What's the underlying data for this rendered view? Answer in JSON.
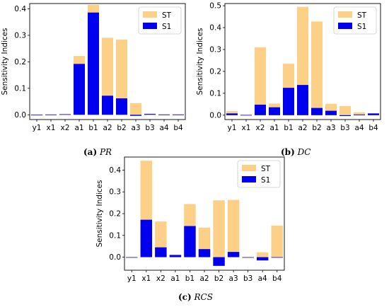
{
  "colors": {
    "st": "#fdd088",
    "s1": "#0000ee",
    "axis": "#000000"
  },
  "chart_data": [
    {
      "type": "bar",
      "stacked_overlay": true,
      "ylabel": "Sensitivity Indices",
      "xlabel": "",
      "categories": [
        "y1",
        "x1",
        "x2",
        "a1",
        "b1",
        "a2",
        "b2",
        "a3",
        "b3",
        "a4",
        "b4"
      ],
      "yticks": [
        "0.0",
        "0.1",
        "0.2",
        "0.3",
        "0.4"
      ],
      "ylim": [
        -0.018,
        0.42
      ],
      "legend_position": "top-right",
      "series": [
        {
          "name": "ST",
          "values": [
            0.001,
            0.002,
            0.003,
            0.222,
            0.415,
            0.291,
            0.284,
            0.044,
            0.005,
            0.003,
            0.003
          ]
        },
        {
          "name": "S1",
          "values": [
            0.0,
            0.001,
            0.002,
            0.192,
            0.386,
            0.072,
            0.062,
            -0.004,
            0.003,
            0.001,
            0.001
          ]
        }
      ],
      "caption": {
        "label": "(a)",
        "name": "PR"
      }
    },
    {
      "type": "bar",
      "stacked_overlay": true,
      "ylabel": "Sensitivity Indices",
      "xlabel": "",
      "categories": [
        "y1",
        "x1",
        "x2",
        "a1",
        "b1",
        "a2",
        "b2",
        "a3",
        "b3",
        "a4",
        "b4"
      ],
      "yticks": [
        "0.0",
        "0.1",
        "0.2",
        "0.3",
        "0.4",
        "0.5"
      ],
      "ylim": [
        -0.02,
        0.51
      ],
      "legend_position": "top-right",
      "series": [
        {
          "name": "ST",
          "values": [
            0.018,
            0.002,
            0.31,
            0.053,
            0.235,
            0.495,
            0.428,
            0.052,
            0.042,
            0.013,
            0.008
          ]
        },
        {
          "name": "S1",
          "values": [
            0.008,
            0.001,
            0.048,
            0.036,
            0.125,
            0.138,
            0.033,
            0.02,
            -0.004,
            0.003,
            0.008
          ]
        }
      ],
      "caption": {
        "label": "(b)",
        "name": "DC"
      }
    },
    {
      "type": "bar",
      "stacked_overlay": true,
      "ylabel": "Sensitivity Indices",
      "xlabel": "",
      "categories": [
        "y1",
        "x1",
        "x2",
        "a1",
        "b1",
        "a2",
        "b2",
        "a3",
        "b3",
        "a4",
        "b4"
      ],
      "yticks": [
        "0.0",
        "0.1",
        "0.2",
        "0.3",
        "0.4"
      ],
      "ylim": [
        -0.06,
        0.46
      ],
      "legend_position": "top-right",
      "series": [
        {
          "name": "ST",
          "values": [
            0.0,
            0.443,
            0.164,
            0.012,
            0.244,
            0.136,
            0.261,
            0.263,
            0.0,
            0.022,
            0.145
          ]
        },
        {
          "name": "S1",
          "values": [
            0.0,
            0.172,
            0.045,
            0.01,
            0.143,
            0.037,
            -0.04,
            0.024,
            0.0,
            -0.015,
            0.0
          ]
        }
      ],
      "caption": {
        "label": "(c)",
        "name": "RCS"
      }
    }
  ]
}
